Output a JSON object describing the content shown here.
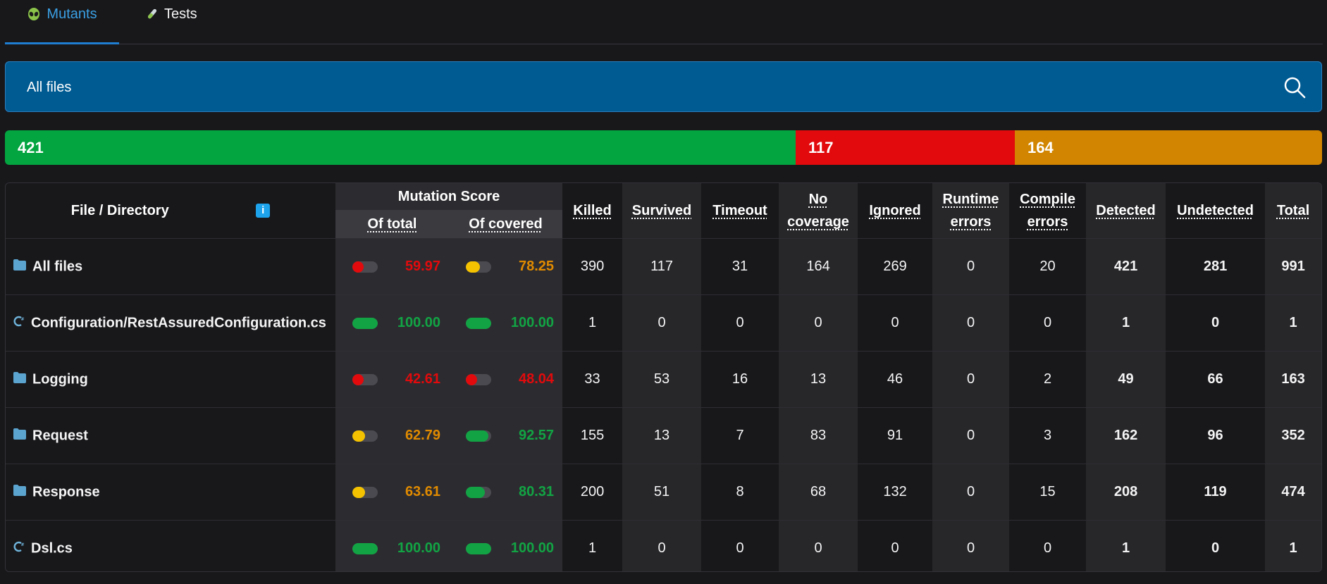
{
  "tabs": [
    {
      "label": "Mutants",
      "icon": "alien-icon"
    },
    {
      "label": "Tests",
      "icon": "test-tube-icon"
    }
  ],
  "search": {
    "label": "All files",
    "icon": "search-icon"
  },
  "summary": {
    "detected": "421",
    "survived": "117",
    "no_coverage": "164"
  },
  "table": {
    "headers": {
      "file": "File / Directory",
      "mutation_score": "Mutation Score",
      "of_total": "Of total",
      "of_covered": "Of covered",
      "killed": "Killed",
      "survived": "Survived",
      "timeout": "Timeout",
      "no_coverage_1": "No",
      "no_coverage_2": "coverage",
      "ignored": "Ignored",
      "runtime_1": "Runtime",
      "runtime_2": "errors",
      "compile_1": "Compile",
      "compile_2": "errors",
      "detected": "Detected",
      "undetected": "Undetected",
      "total": "Total"
    },
    "rows": [
      {
        "name": "All files",
        "icon": "folder-icon",
        "of_total": "59.97",
        "of_total_color": "#e20a0c",
        "of_total_frac": 0.3,
        "of_covered": "78.25",
        "of_covered_color": "#f5c200",
        "of_covered_frac": 0.55,
        "killed": "390",
        "survived": "117",
        "timeout": "31",
        "no_coverage": "164",
        "ignored": "269",
        "runtime": "0",
        "compile": "20",
        "detected": "421",
        "undetected": "281",
        "total": "991"
      },
      {
        "name": "Configuration/RestAssuredConfiguration.cs",
        "icon": "csharp-file-icon",
        "of_total": "100.00",
        "of_total_color": "#12a444",
        "of_total_frac": 1,
        "of_covered": "100.00",
        "of_covered_color": "#12a444",
        "of_covered_frac": 1,
        "killed": "1",
        "survived": "0",
        "timeout": "0",
        "no_coverage": "0",
        "ignored": "0",
        "runtime": "0",
        "compile": "0",
        "detected": "1",
        "undetected": "0",
        "total": "1"
      },
      {
        "name": "Logging",
        "icon": "folder-icon",
        "of_total": "42.61",
        "of_total_color": "#e20a0c",
        "of_total_frac": 0.3,
        "of_covered": "48.04",
        "of_covered_color": "#e20a0c",
        "of_covered_frac": 0.35,
        "killed": "33",
        "survived": "53",
        "timeout": "16",
        "no_coverage": "13",
        "ignored": "46",
        "runtime": "0",
        "compile": "2",
        "detected": "49",
        "undetected": "66",
        "total": "163"
      },
      {
        "name": "Request",
        "icon": "folder-icon",
        "of_total": "62.79",
        "of_total_color": "#f5c200",
        "of_total_frac": 0.5,
        "of_covered": "92.57",
        "of_covered_color": "#12a444",
        "of_covered_frac": 0.9,
        "killed": "155",
        "survived": "13",
        "timeout": "7",
        "no_coverage": "83",
        "ignored": "91",
        "runtime": "0",
        "compile": "3",
        "detected": "162",
        "undetected": "96",
        "total": "352"
      },
      {
        "name": "Response",
        "icon": "folder-icon",
        "of_total": "63.61",
        "of_total_color": "#f5c200",
        "of_total_frac": 0.5,
        "of_covered": "80.31",
        "of_covered_color": "#12a444",
        "of_covered_frac": 0.75,
        "killed": "200",
        "survived": "51",
        "timeout": "8",
        "no_coverage": "68",
        "ignored": "132",
        "runtime": "0",
        "compile": "15",
        "detected": "208",
        "undetected": "119",
        "total": "474"
      },
      {
        "name": "Dsl.cs",
        "icon": "csharp-file-icon",
        "of_total": "100.00",
        "of_total_color": "#12a444",
        "of_total_frac": 1,
        "of_covered": "100.00",
        "of_covered_color": "#12a444",
        "of_covered_frac": 1,
        "killed": "1",
        "survived": "0",
        "timeout": "0",
        "no_coverage": "0",
        "ignored": "0",
        "runtime": "0",
        "compile": "0",
        "detected": "1",
        "undetected": "0",
        "total": "1"
      }
    ]
  }
}
